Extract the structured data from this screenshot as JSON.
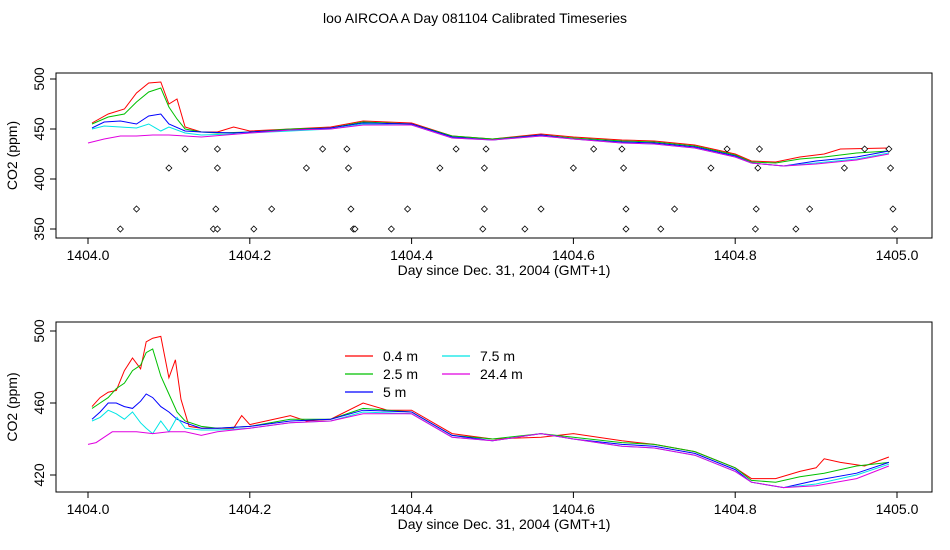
{
  "figure": {
    "title": "loo AIRCOA A  Day 081104  Calibrated Timeseries"
  },
  "chart_data": [
    {
      "type": "line",
      "title": "",
      "xlabel": "Day since Dec. 31, 2004 (GMT+1)",
      "ylabel": "CO2 (ppm)",
      "xlim": [
        1404.0,
        1405.0
      ],
      "ylim": [
        345,
        505
      ],
      "xticks": [
        1404.0,
        1404.2,
        1404.4,
        1404.6,
        1404.8,
        1405.0
      ],
      "xtick_labels": [
        "1404.0",
        "1404.2",
        "1404.4",
        "1404.6",
        "1404.8",
        "1405.0"
      ],
      "yticks": [
        350,
        400,
        450,
        500
      ],
      "ytick_labels": [
        "350",
        "400",
        "450",
        "500"
      ],
      "legend": null,
      "series": [
        {
          "color": "#ff0000",
          "x": [
            1404.005,
            1404.025,
            1404.045,
            1404.06,
            1404.075,
            1404.09,
            1404.1,
            1404.11,
            1404.12,
            1404.14,
            1404.16,
            1404.18,
            1404.2,
            1404.25,
            1404.3,
            1404.34,
            1404.4,
            1404.45,
            1404.5,
            1404.56,
            1404.6,
            1404.66,
            1404.7,
            1404.75,
            1404.8,
            1404.82,
            1404.85,
            1404.88,
            1404.91,
            1404.93,
            1404.99
          ],
          "y": [
            456,
            465,
            470,
            486,
            496,
            497,
            475,
            480,
            452,
            447,
            447,
            452,
            448,
            450,
            452,
            458,
            456,
            443,
            440,
            445,
            442,
            439,
            438,
            434,
            425,
            418,
            417,
            422,
            425,
            430,
            431
          ]
        },
        {
          "color": "#00c000",
          "x": [
            1404.005,
            1404.025,
            1404.045,
            1404.06,
            1404.075,
            1404.09,
            1404.1,
            1404.11,
            1404.12,
            1404.14,
            1404.16,
            1404.2,
            1404.25,
            1404.3,
            1404.34,
            1404.4,
            1404.45,
            1404.5,
            1404.56,
            1404.6,
            1404.66,
            1404.7,
            1404.75,
            1404.8,
            1404.82,
            1404.85,
            1404.88,
            1404.91,
            1404.95,
            1404.99
          ],
          "y": [
            455,
            462,
            465,
            477,
            487,
            491,
            472,
            460,
            450,
            447,
            446,
            447,
            450,
            451,
            457,
            455,
            443,
            440,
            444,
            441,
            438,
            437,
            433,
            424,
            417,
            416,
            420,
            422,
            426,
            428
          ]
        },
        {
          "color": "#0000ff",
          "x": [
            1404.005,
            1404.02,
            1404.04,
            1404.06,
            1404.075,
            1404.09,
            1404.1,
            1404.12,
            1404.14,
            1404.18,
            1404.2,
            1404.25,
            1404.3,
            1404.34,
            1404.4,
            1404.45,
            1404.5,
            1404.56,
            1404.6,
            1404.66,
            1404.7,
            1404.75,
            1404.8,
            1404.82,
            1404.86,
            1404.9,
            1404.95,
            1404.99
          ],
          "y": [
            451,
            457,
            458,
            455,
            463,
            465,
            455,
            448,
            447,
            446,
            447,
            449,
            451,
            456,
            455,
            442,
            439,
            444,
            440,
            437,
            436,
            432,
            423,
            416,
            413,
            418,
            422,
            428
          ]
        },
        {
          "color": "#00e5e5",
          "x": [
            1404.005,
            1404.02,
            1404.04,
            1404.06,
            1404.075,
            1404.09,
            1404.1,
            1404.12,
            1404.14,
            1404.18,
            1404.2,
            1404.25,
            1404.3,
            1404.34,
            1404.4,
            1404.45,
            1404.5,
            1404.56,
            1404.6,
            1404.66,
            1404.7,
            1404.75,
            1404.8,
            1404.82,
            1404.86,
            1404.9,
            1404.95,
            1404.99
          ],
          "y": [
            450,
            453,
            452,
            451,
            455,
            448,
            452,
            446,
            444,
            445,
            446,
            448,
            450,
            455,
            454,
            441,
            439,
            443,
            440,
            436,
            435,
            431,
            422,
            416,
            413,
            416,
            420,
            426
          ]
        },
        {
          "color": "#e000e0",
          "x": [
            1404.0,
            1404.02,
            1404.04,
            1404.06,
            1404.08,
            1404.1,
            1404.14,
            1404.2,
            1404.25,
            1404.3,
            1404.34,
            1404.4,
            1404.45,
            1404.5,
            1404.56,
            1404.6,
            1404.66,
            1404.7,
            1404.75,
            1404.8,
            1404.82,
            1404.86,
            1404.9,
            1404.95,
            1404.99
          ],
          "y": [
            436,
            440,
            443,
            443,
            444,
            444,
            442,
            446,
            449,
            450,
            454,
            454,
            441,
            439,
            443,
            440,
            436,
            435,
            431,
            422,
            416,
            413,
            415,
            419,
            425
          ]
        }
      ],
      "points": {
        "x": [
          1404.04,
          1404.06,
          1404.1,
          1404.12,
          1404.155,
          1404.158,
          1404.16,
          1404.16,
          1404.16,
          1404.205,
          1404.227,
          1404.27,
          1404.29,
          1404.32,
          1404.322,
          1404.325,
          1404.328,
          1404.33,
          1404.375,
          1404.395,
          1404.435,
          1404.455,
          1404.488,
          1404.49,
          1404.49,
          1404.492,
          1404.54,
          1404.56,
          1404.6,
          1404.625,
          1404.66,
          1404.662,
          1404.665,
          1404.665,
          1404.708,
          1404.725,
          1404.77,
          1404.79,
          1404.825,
          1404.826,
          1404.828,
          1404.83,
          1404.875,
          1404.892,
          1404.935,
          1404.96,
          1404.99,
          1404.992,
          1404.995,
          1404.997
        ],
        "y": [
          350,
          370,
          411,
          430,
          350,
          370,
          411,
          430,
          350,
          350,
          370,
          411,
          430,
          430,
          411,
          370,
          350,
          350,
          350,
          370,
          411,
          430,
          350,
          370,
          411,
          430,
          350,
          370,
          411,
          430,
          430,
          411,
          370,
          350,
          350,
          370,
          411,
          430,
          350,
          370,
          411,
          430,
          350,
          370,
          411,
          430,
          430,
          411,
          370,
          350
        ]
      }
    },
    {
      "type": "line",
      "title": "",
      "xlabel": "Day since Dec. 31, 2004 (GMT+1)",
      "ylabel": "CO2 (ppm)",
      "xlim": [
        1404.0,
        1405.0
      ],
      "ylim": [
        409,
        501
      ],
      "xticks": [
        1404.0,
        1404.2,
        1404.4,
        1404.6,
        1404.8,
        1405.0
      ],
      "xtick_labels": [
        "1404.0",
        "1404.2",
        "1404.4",
        "1404.6",
        "1404.8",
        "1405.0"
      ],
      "yticks": [
        420,
        460,
        500
      ],
      "ytick_labels": [
        "420",
        "460",
        "500"
      ],
      "legend": {
        "entries": [
          {
            "label": "0.4 m",
            "color": "#ff0000"
          },
          {
            "label": "2.5 m",
            "color": "#00c000"
          },
          {
            "label": "5 m",
            "color": "#0000ff"
          },
          {
            "label": "7.5 m",
            "color": "#00e5e5"
          },
          {
            "label": "24.4 m",
            "color": "#e000e0"
          }
        ]
      },
      "series": [
        {
          "name": "0.4 m",
          "color": "#ff0000",
          "x": [
            1404.005,
            1404.015,
            1404.025,
            1404.035,
            1404.045,
            1404.055,
            1404.065,
            1404.072,
            1404.08,
            1404.09,
            1404.1,
            1404.108,
            1404.115,
            1404.125,
            1404.14,
            1404.16,
            1404.18,
            1404.19,
            1404.2,
            1404.22,
            1404.25,
            1404.27,
            1404.3,
            1404.34,
            1404.37,
            1404.4,
            1404.45,
            1404.5,
            1404.56,
            1404.6,
            1404.66,
            1404.7,
            1404.75,
            1404.8,
            1404.82,
            1404.85,
            1404.88,
            1404.9,
            1404.91,
            1404.93,
            1404.96,
            1404.99
          ],
          "y": [
            458,
            463,
            466,
            467,
            478,
            485,
            479,
            494,
            496,
            497,
            474,
            484,
            462,
            447,
            446,
            446,
            446,
            453,
            448,
            450,
            453,
            450,
            451,
            460,
            456,
            456,
            443,
            440,
            441,
            443,
            439,
            437,
            433,
            424,
            418,
            418,
            422,
            424,
            429,
            427,
            425,
            430
          ]
        },
        {
          "name": "2.5 m",
          "color": "#00c000",
          "x": [
            1404.005,
            1404.015,
            1404.025,
            1404.035,
            1404.045,
            1404.055,
            1404.065,
            1404.072,
            1404.08,
            1404.09,
            1404.1,
            1404.11,
            1404.12,
            1404.14,
            1404.16,
            1404.2,
            1404.25,
            1404.3,
            1404.34,
            1404.4,
            1404.45,
            1404.5,
            1404.56,
            1404.6,
            1404.66,
            1404.7,
            1404.75,
            1404.8,
            1404.82,
            1404.85,
            1404.88,
            1404.91,
            1404.95,
            1404.99
          ],
          "y": [
            457,
            460,
            463,
            468,
            471,
            478,
            481,
            488,
            490,
            475,
            465,
            455,
            450,
            447,
            446,
            447,
            451,
            451,
            457,
            455,
            442,
            440,
            443,
            441,
            438,
            437,
            433,
            424,
            417,
            416,
            419,
            421,
            425,
            427
          ]
        },
        {
          "name": "5 m",
          "color": "#0000ff",
          "x": [
            1404.005,
            1404.015,
            1404.025,
            1404.035,
            1404.045,
            1404.055,
            1404.065,
            1404.072,
            1404.08,
            1404.09,
            1404.1,
            1404.11,
            1404.12,
            1404.14,
            1404.16,
            1404.2,
            1404.25,
            1404.3,
            1404.34,
            1404.4,
            1404.45,
            1404.5,
            1404.56,
            1404.6,
            1404.66,
            1404.7,
            1404.75,
            1404.8,
            1404.82,
            1404.86,
            1404.9,
            1404.95,
            1404.99
          ],
          "y": [
            451,
            455,
            460,
            460,
            458,
            457,
            461,
            465,
            463,
            458,
            455,
            451,
            449,
            446,
            446,
            447,
            450,
            451,
            456,
            455,
            442,
            439,
            443,
            440,
            437,
            436,
            432,
            423,
            416,
            413,
            417,
            421,
            427
          ]
        },
        {
          "name": "7.5 m",
          "color": "#00e5e5",
          "x": [
            1404.005,
            1404.015,
            1404.025,
            1404.035,
            1404.045,
            1404.055,
            1404.065,
            1404.072,
            1404.08,
            1404.09,
            1404.1,
            1404.11,
            1404.12,
            1404.14,
            1404.16,
            1404.2,
            1404.25,
            1404.3,
            1404.34,
            1404.4,
            1404.45,
            1404.5,
            1404.56,
            1404.6,
            1404.66,
            1404.7,
            1404.75,
            1404.8,
            1404.82,
            1404.86,
            1404.9,
            1404.95,
            1404.99
          ],
          "y": [
            450,
            452,
            456,
            454,
            451,
            455,
            449,
            446,
            443,
            450,
            444,
            452,
            446,
            445,
            445,
            446,
            449,
            450,
            455,
            454,
            441,
            439,
            443,
            440,
            436,
            435,
            431,
            422,
            416,
            413,
            415,
            420,
            426
          ]
        },
        {
          "name": "24.4 m",
          "color": "#e000e0",
          "x": [
            1404.0,
            1404.01,
            1404.02,
            1404.03,
            1404.04,
            1404.06,
            1404.08,
            1404.1,
            1404.12,
            1404.14,
            1404.16,
            1404.2,
            1404.25,
            1404.3,
            1404.34,
            1404.4,
            1404.45,
            1404.5,
            1404.56,
            1404.6,
            1404.66,
            1404.7,
            1404.75,
            1404.8,
            1404.82,
            1404.86,
            1404.9,
            1404.95,
            1404.99
          ],
          "y": [
            437,
            438,
            441,
            444,
            444,
            444,
            443,
            444,
            444,
            442,
            444,
            446,
            449,
            450,
            454,
            454,
            441,
            439,
            443,
            440,
            436,
            435,
            431,
            422,
            416,
            413,
            414,
            418,
            425
          ]
        }
      ]
    }
  ]
}
